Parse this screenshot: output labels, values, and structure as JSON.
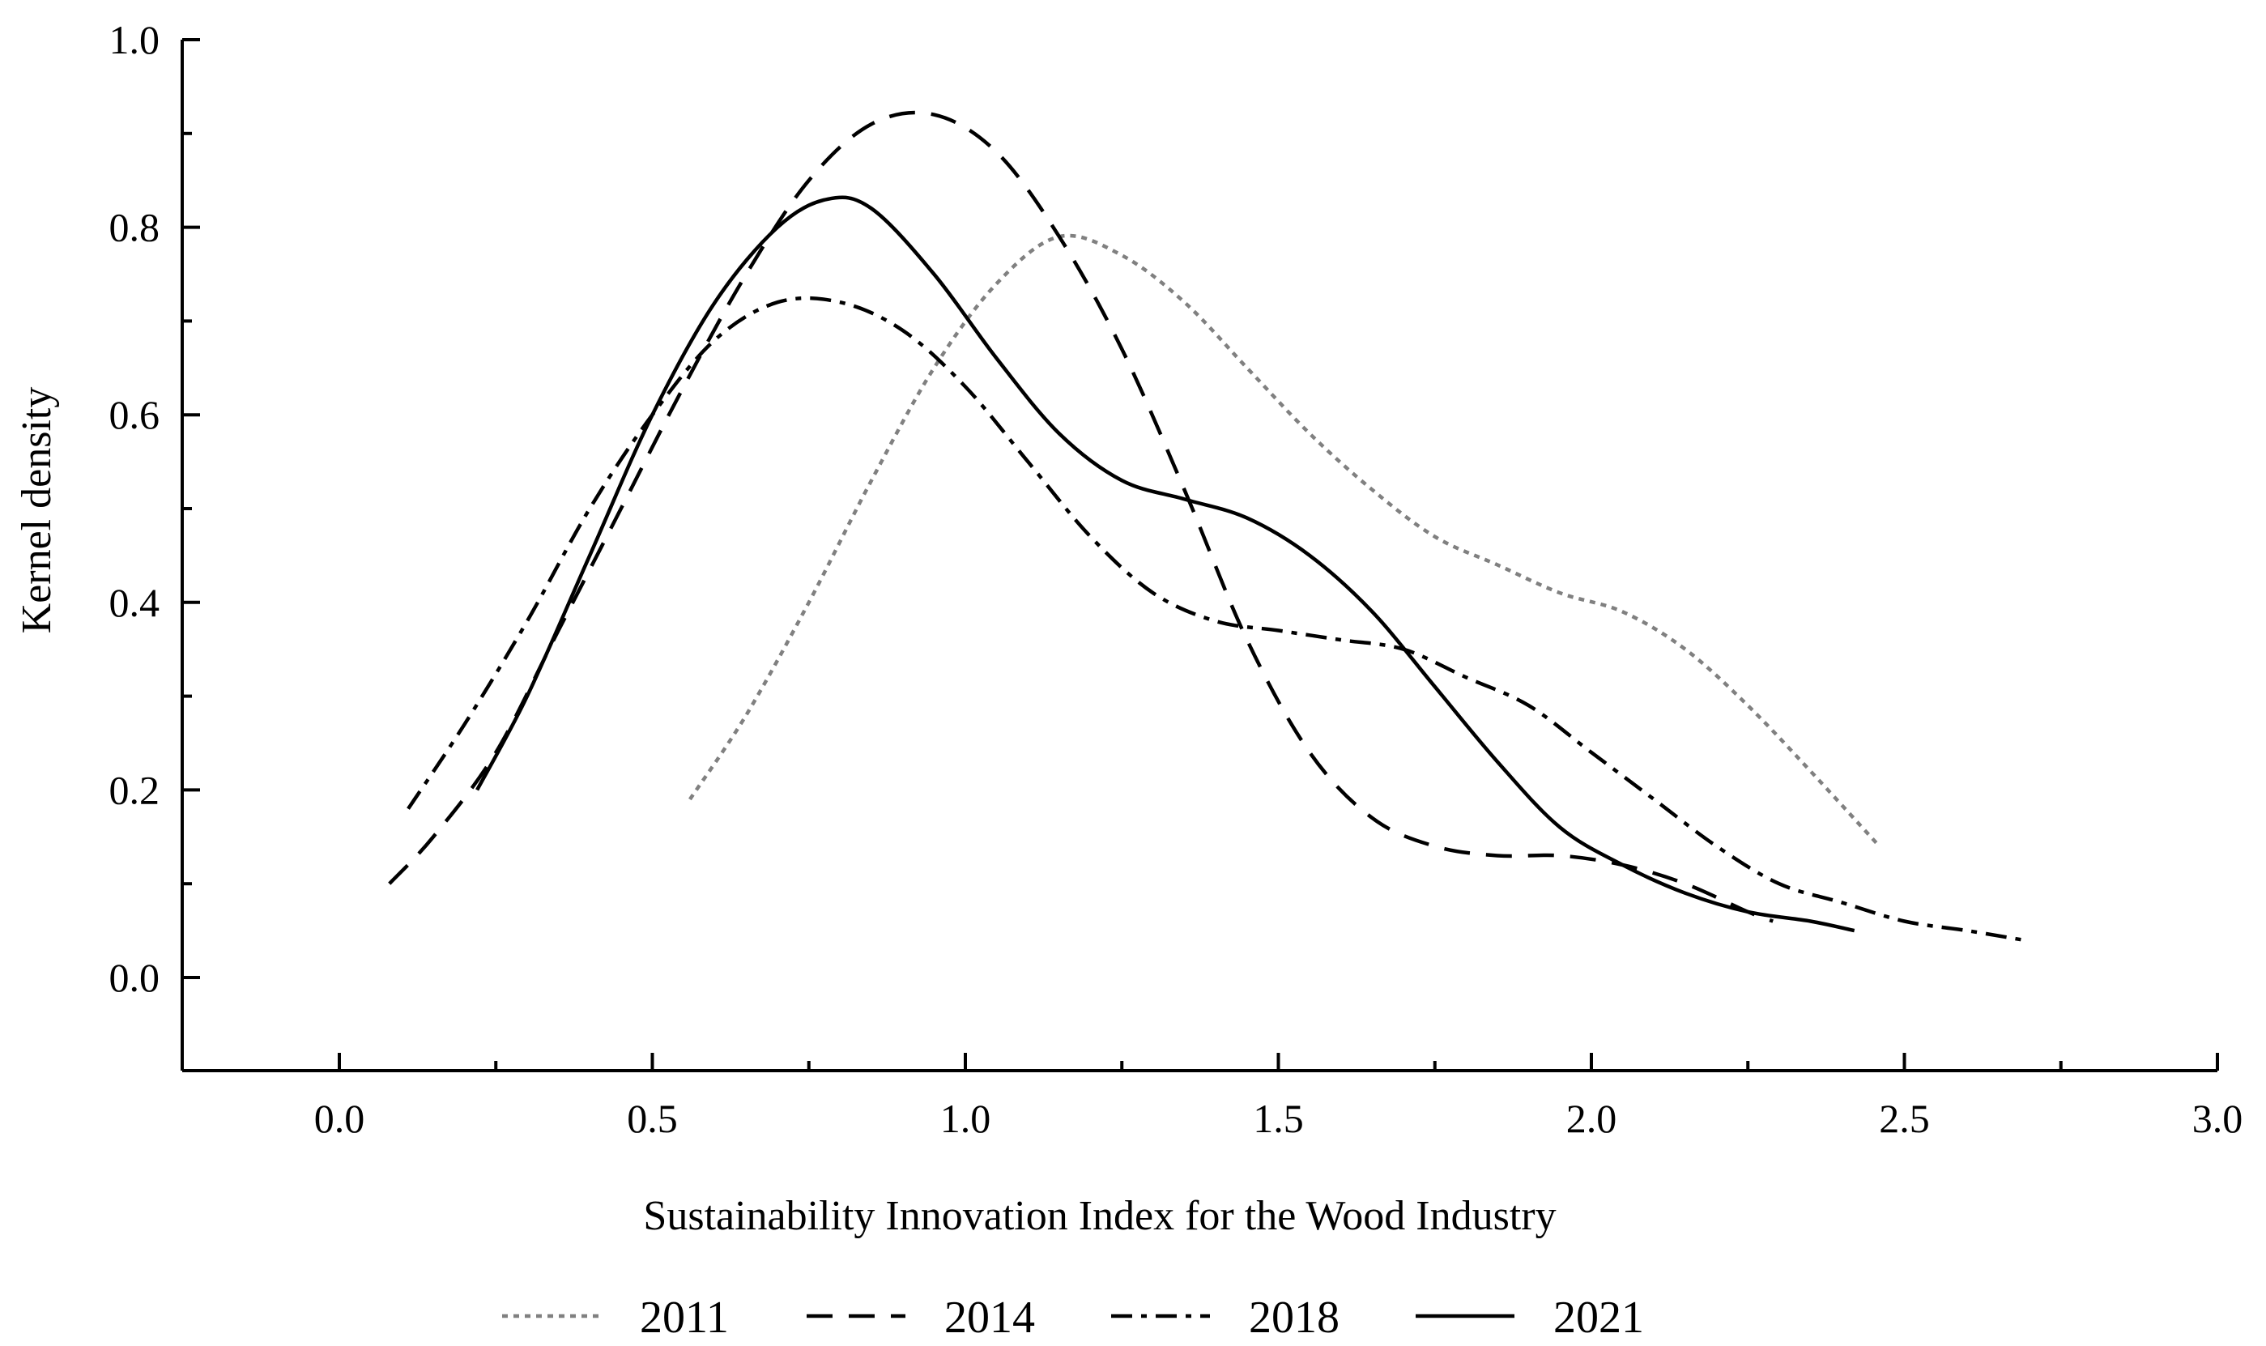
{
  "chart_data": {
    "type": "line",
    "title": "",
    "xlabel": "Sustainability Innovation Index for the Wood Industry",
    "ylabel": "Kernel density",
    "xlim": [
      -0.25,
      3.0
    ],
    "ylim": [
      -0.1,
      1.0
    ],
    "x_ticks": [
      "0.0",
      "0.5",
      "1.0",
      "1.5",
      "2.0",
      "2.5",
      "3.0"
    ],
    "x_tick_values": [
      0.0,
      0.5,
      1.0,
      1.5,
      2.0,
      2.5,
      3.0
    ],
    "y_ticks": [
      "0.0",
      "0.2",
      "0.4",
      "0.6",
      "0.8",
      "1.0"
    ],
    "y_tick_values": [
      0.0,
      0.2,
      0.4,
      0.6,
      0.8,
      1.0
    ],
    "grid": false,
    "legend_position": "bottom",
    "series": [
      {
        "name": "2011",
        "color": "#808080",
        "dash": "dotted",
        "x": [
          0.56,
          0.65,
          0.75,
          0.85,
          0.95,
          1.05,
          1.15,
          1.25,
          1.35,
          1.45,
          1.55,
          1.65,
          1.75,
          1.85,
          1.95,
          2.05,
          2.15,
          2.25,
          2.35,
          2.46
        ],
        "y": [
          0.19,
          0.28,
          0.4,
          0.53,
          0.65,
          0.74,
          0.79,
          0.77,
          0.72,
          0.65,
          0.58,
          0.52,
          0.47,
          0.44,
          0.41,
          0.39,
          0.35,
          0.29,
          0.22,
          0.14
        ]
      },
      {
        "name": "2014",
        "color": "#000000",
        "dash": "dashed",
        "x": [
          0.08,
          0.15,
          0.25,
          0.35,
          0.45,
          0.55,
          0.65,
          0.75,
          0.85,
          0.95,
          1.05,
          1.15,
          1.25,
          1.35,
          1.45,
          1.55,
          1.65,
          1.75,
          1.85,
          1.95,
          2.05,
          2.15,
          2.25,
          2.29
        ],
        "y": [
          0.1,
          0.15,
          0.24,
          0.37,
          0.5,
          0.63,
          0.75,
          0.85,
          0.91,
          0.92,
          0.88,
          0.79,
          0.67,
          0.52,
          0.36,
          0.24,
          0.17,
          0.14,
          0.13,
          0.13,
          0.12,
          0.1,
          0.07,
          0.06
        ]
      },
      {
        "name": "2018",
        "color": "#000000",
        "dash": "dashdot",
        "x": [
          0.11,
          0.2,
          0.3,
          0.4,
          0.5,
          0.6,
          0.7,
          0.8,
          0.9,
          1.0,
          1.1,
          1.2,
          1.3,
          1.4,
          1.5,
          1.6,
          1.7,
          1.8,
          1.9,
          2.0,
          2.1,
          2.2,
          2.3,
          2.4,
          2.5,
          2.6,
          2.69
        ],
        "y": [
          0.18,
          0.27,
          0.38,
          0.5,
          0.6,
          0.68,
          0.72,
          0.72,
          0.69,
          0.63,
          0.55,
          0.47,
          0.41,
          0.38,
          0.37,
          0.36,
          0.35,
          0.32,
          0.29,
          0.24,
          0.19,
          0.14,
          0.1,
          0.08,
          0.06,
          0.05,
          0.04
        ]
      },
      {
        "name": "2021",
        "color": "#000000",
        "dash": "solid",
        "x": [
          0.22,
          0.3,
          0.4,
          0.5,
          0.6,
          0.7,
          0.78,
          0.85,
          0.95,
          1.05,
          1.15,
          1.25,
          1.35,
          1.45,
          1.55,
          1.65,
          1.75,
          1.85,
          1.95,
          2.05,
          2.15,
          2.25,
          2.35,
          2.42
        ],
        "y": [
          0.2,
          0.3,
          0.45,
          0.6,
          0.72,
          0.8,
          0.83,
          0.82,
          0.75,
          0.66,
          0.58,
          0.53,
          0.51,
          0.49,
          0.45,
          0.39,
          0.31,
          0.23,
          0.16,
          0.12,
          0.09,
          0.07,
          0.06,
          0.05
        ]
      }
    ]
  }
}
